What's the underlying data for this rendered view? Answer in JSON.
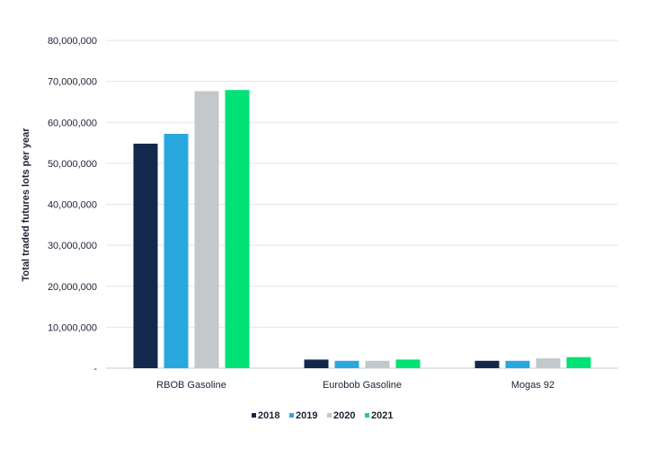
{
  "chart_data": {
    "type": "bar",
    "title": "",
    "xlabel": "",
    "ylabel": "Total traded futures lots per year",
    "ylim": [
      0,
      80000000
    ],
    "yticks": [
      0,
      10000000,
      20000000,
      30000000,
      40000000,
      50000000,
      60000000,
      70000000,
      80000000
    ],
    "ytick_labels": [
      "-",
      "10,000,000",
      "20,000,000",
      "30,000,000",
      "40,000,000",
      "50,000,000",
      "60,000,000",
      "70,000,000",
      "80,000,000"
    ],
    "categories": [
      "RBOB Gasoline",
      "Eurobob Gasoline",
      "Mogas 92"
    ],
    "series": [
      {
        "name": "2018",
        "color": "#13294b",
        "values": [
          54800000,
          2100000,
          1800000
        ]
      },
      {
        "name": "2019",
        "color": "#29a8e0",
        "values": [
          57200000,
          1800000,
          1800000
        ]
      },
      {
        "name": "2020",
        "color": "#c3c8cd",
        "values": [
          67600000,
          1800000,
          2400000
        ]
      },
      {
        "name": "2021",
        "color": "#00e276",
        "values": [
          67900000,
          2100000,
          2700000
        ]
      }
    ],
    "grid": true,
    "legend_position": "bottom-center"
  }
}
